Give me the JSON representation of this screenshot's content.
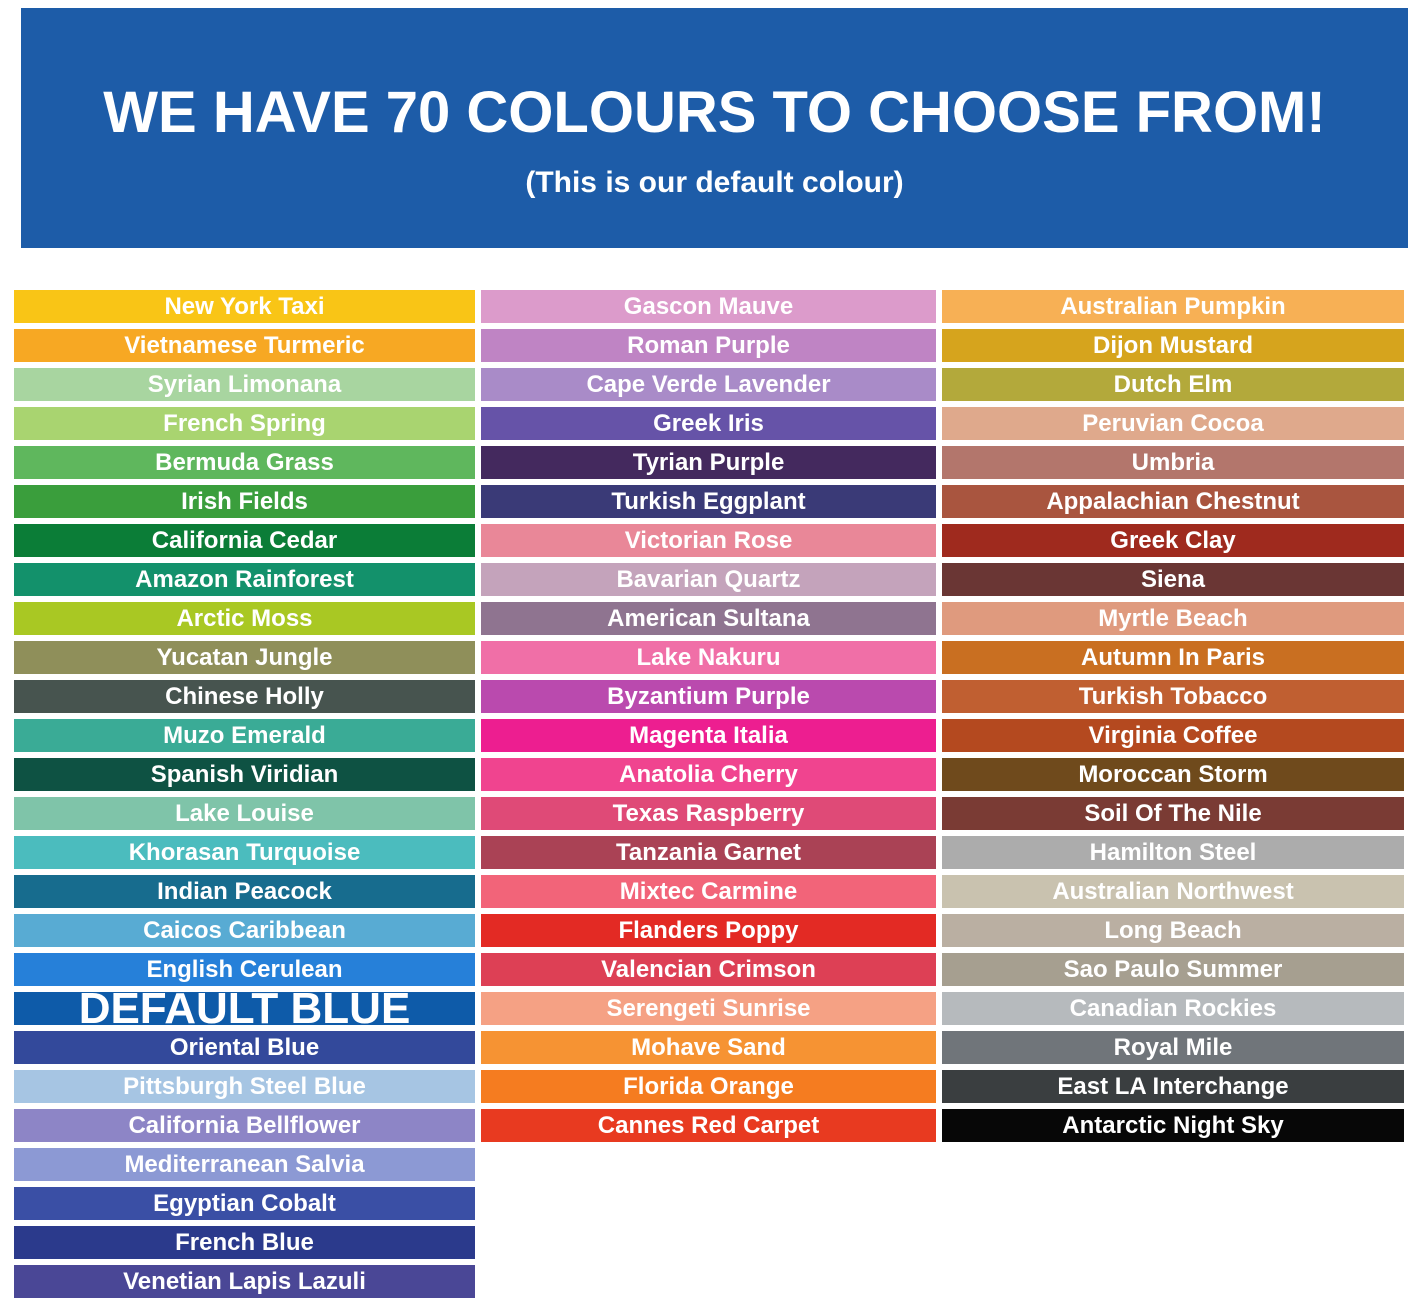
{
  "header": {
    "title": "WE HAVE 70 COLOURS TO CHOOSE FROM!",
    "subtitle": "(This is our default colour)",
    "background": "#1D5CA8",
    "text_color": "#FFFFFF"
  },
  "columns": [
    {
      "swatches": [
        {
          "name": "New York Taxi",
          "color": "#F9C516"
        },
        {
          "name": "Vietnamese Turmeric",
          "color": "#F7A823"
        },
        {
          "name": "Syrian Limonana",
          "color": "#A8D5A0"
        },
        {
          "name": "French Spring",
          "color": "#A9D470"
        },
        {
          "name": "Bermuda Grass",
          "color": "#5FB75D"
        },
        {
          "name": "Irish Fields",
          "color": "#3A9E3C"
        },
        {
          "name": "California Cedar",
          "color": "#0B7D37"
        },
        {
          "name": "Amazon Rainforest",
          "color": "#13916B"
        },
        {
          "name": "Arctic Moss",
          "color": "#A9C823"
        },
        {
          "name": "Yucatan Jungle",
          "color": "#8F8F5A"
        },
        {
          "name": "Chinese Holly",
          "color": "#47544F"
        },
        {
          "name": "Muzo Emerald",
          "color": "#3AAB96"
        },
        {
          "name": "Spanish Viridian",
          "color": "#0E5243"
        },
        {
          "name": "Lake Louise",
          "color": "#7FC4A9"
        },
        {
          "name": "Khorasan Turquoise",
          "color": "#4BBCBE"
        },
        {
          "name": "Indian Peacock",
          "color": "#176C8E"
        },
        {
          "name": "Caicos Caribbean",
          "color": "#58ABD3"
        },
        {
          "name": "English Cerulean",
          "color": "#2680D9"
        },
        {
          "name": "DEFAULT BLUE",
          "color": "#0E5BA9",
          "emphasis": true
        },
        {
          "name": "Oriental Blue",
          "color": "#33499B"
        },
        {
          "name": "Pittsburgh Steel Blue",
          "color": "#A6C5E3"
        },
        {
          "name": "California Bellflower",
          "color": "#8D85C6"
        },
        {
          "name": "Mediterranean Salvia",
          "color": "#8C99D4"
        },
        {
          "name": "Egyptian Cobalt",
          "color": "#3A4FA5"
        },
        {
          "name": "French Blue",
          "color": "#2B3A8C"
        },
        {
          "name": "Venetian Lapis Lazuli",
          "color": "#4A4796"
        }
      ]
    },
    {
      "swatches": [
        {
          "name": "Gascon Mauve",
          "color": "#DC9BCB"
        },
        {
          "name": "Roman Purple",
          "color": "#BF84C4"
        },
        {
          "name": "Cape Verde Lavender",
          "color": "#A98BC8"
        },
        {
          "name": "Greek Iris",
          "color": "#6653A8"
        },
        {
          "name": "Tyrian Purple",
          "color": "#44295E"
        },
        {
          "name": "Turkish Eggplant",
          "color": "#3A3A77"
        },
        {
          "name": "Victorian Rose",
          "color": "#E98798"
        },
        {
          "name": "Bavarian Quartz",
          "color": "#C4A3BB"
        },
        {
          "name": "American Sultana",
          "color": "#8F7490"
        },
        {
          "name": "Lake Nakuru",
          "color": "#F06FA7"
        },
        {
          "name": "Byzantium Purple",
          "color": "#BA4AAE"
        },
        {
          "name": "Magenta Italia",
          "color": "#ED1E90"
        },
        {
          "name": "Anatolia Cherry",
          "color": "#F0448F"
        },
        {
          "name": "Texas Raspberry",
          "color": "#DF4A77"
        },
        {
          "name": "Tanzania Garnet",
          "color": "#AA4255"
        },
        {
          "name": "Mixtec Carmine",
          "color": "#F26479"
        },
        {
          "name": "Flanders Poppy",
          "color": "#E32A24"
        },
        {
          "name": "Valencian Crimson",
          "color": "#DD4055"
        },
        {
          "name": "Serengeti Sunrise",
          "color": "#F5A184"
        },
        {
          "name": "Mohave Sand",
          "color": "#F69333"
        },
        {
          "name": "Florida Orange",
          "color": "#F57C20"
        },
        {
          "name": "Cannes Red Carpet",
          "color": "#E83A20"
        }
      ]
    },
    {
      "swatches": [
        {
          "name": "Australian Pumpkin",
          "color": "#F7B055"
        },
        {
          "name": "Dijon Mustard",
          "color": "#D6A41D"
        },
        {
          "name": "Dutch Elm",
          "color": "#B3A93B"
        },
        {
          "name": "Peruvian Cocoa",
          "color": "#DFA98C"
        },
        {
          "name": "Umbria",
          "color": "#B3766C"
        },
        {
          "name": "Appalachian Chestnut",
          "color": "#A9553F"
        },
        {
          "name": "Greek Clay",
          "color": "#9F2A1E"
        },
        {
          "name": "Siena",
          "color": "#6A3634"
        },
        {
          "name": "Myrtle Beach",
          "color": "#DF9A7E"
        },
        {
          "name": "Autumn In Paris",
          "color": "#C96F21"
        },
        {
          "name": "Turkish Tobacco",
          "color": "#C05F31"
        },
        {
          "name": "Virginia Coffee",
          "color": "#B4491F"
        },
        {
          "name": "Moroccan Storm",
          "color": "#6F4A1C"
        },
        {
          "name": "Soil Of The Nile",
          "color": "#7A3B34"
        },
        {
          "name": "Hamilton Steel",
          "color": "#ACACAC"
        },
        {
          "name": "Australian Northwest",
          "color": "#C9C2AF"
        },
        {
          "name": "Long Beach",
          "color": "#BAAFA2"
        },
        {
          "name": "Sao Paulo Summer",
          "color": "#A69F90"
        },
        {
          "name": "Canadian Rockies",
          "color": "#B6BABD"
        },
        {
          "name": "Royal Mile",
          "color": "#70757A"
        },
        {
          "name": "East LA Interchange",
          "color": "#3A3E40"
        },
        {
          "name": "Antarctic Night Sky",
          "color": "#070707"
        }
      ]
    }
  ]
}
